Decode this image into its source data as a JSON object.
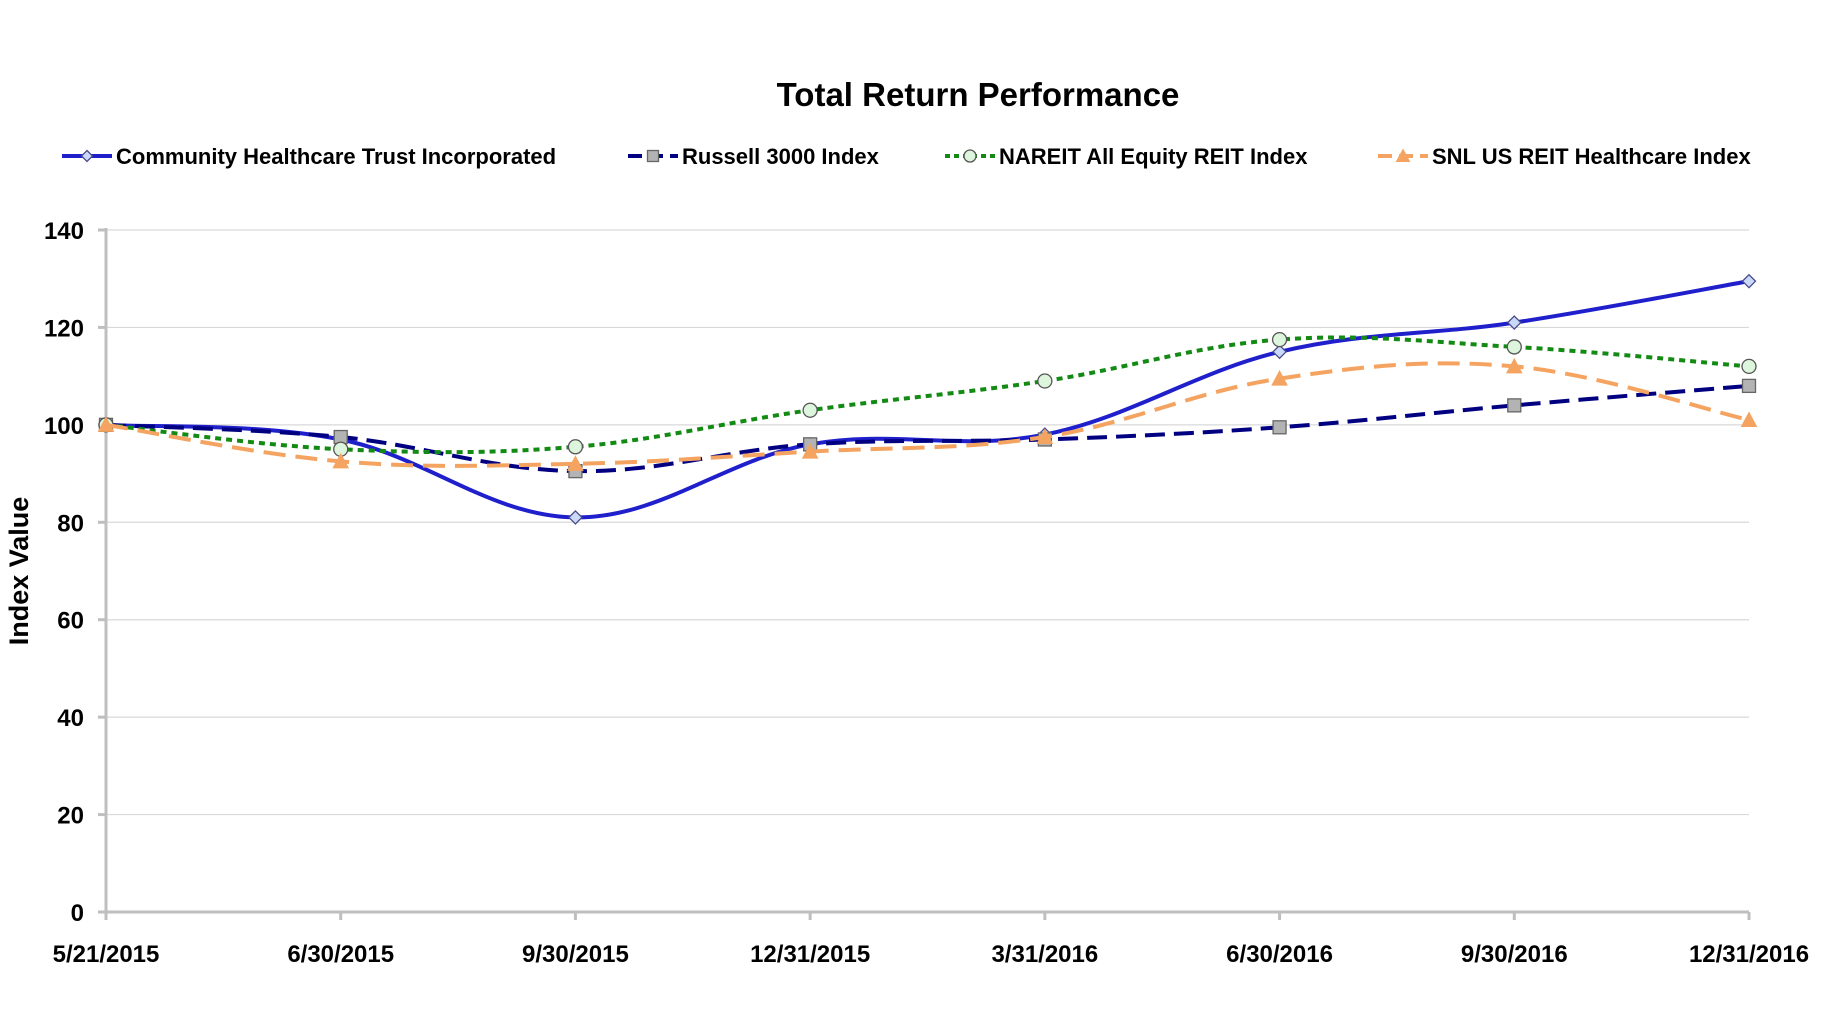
{
  "chart_data": {
    "type": "line",
    "title": "Total Return Performance",
    "xlabel": "",
    "ylabel": "Index Value",
    "categories": [
      "5/21/2015",
      "6/30/2015",
      "9/30/2015",
      "12/31/2015",
      "3/31/2016",
      "6/30/2016",
      "9/30/2016",
      "12/31/2016"
    ],
    "yticks": [
      "0",
      "20",
      "40",
      "60",
      "80",
      "100",
      "120",
      "140"
    ],
    "ylim": [
      0,
      140
    ],
    "grid": true,
    "legend_position": "top",
    "series": [
      {
        "name": "Community Healthcare Trust Incorporated",
        "values": [
          100.0,
          97.0,
          81.0,
          96.0,
          98.0,
          115.0,
          121.0,
          129.5
        ],
        "color": "#1f1fcc",
        "dash": "",
        "marker": "diamond",
        "marker_fill": "#c9d9f7",
        "marker_stroke": "#4a4a8a",
        "smooth": true
      },
      {
        "name": "Russell 3000 Index",
        "values": [
          100.0,
          97.5,
          90.5,
          96.0,
          97.0,
          99.5,
          104.0,
          108.0
        ],
        "color": "#000080",
        "dash": "20,9",
        "marker": "square",
        "marker_fill": "#b3b3b3",
        "marker_stroke": "#666666",
        "smooth": true
      },
      {
        "name": "NAREIT All Equity REIT Index",
        "values": [
          100.0,
          95.0,
          95.5,
          103.0,
          109.0,
          117.5,
          116.0,
          112.0
        ],
        "color": "#138a13",
        "dash": "6,5",
        "marker": "circle",
        "marker_fill": "#dcf5dc",
        "marker_stroke": "#555555",
        "smooth": true
      },
      {
        "name": "SNL US REIT Healthcare Index",
        "values": [
          100.0,
          92.5,
          92.0,
          94.5,
          97.5,
          109.5,
          112.0,
          101.0
        ],
        "color": "#f4a460",
        "dash": "22,10",
        "marker": "triangle",
        "marker_fill": "#f4a460",
        "marker_stroke": "#f4a460",
        "smooth": true
      }
    ]
  }
}
